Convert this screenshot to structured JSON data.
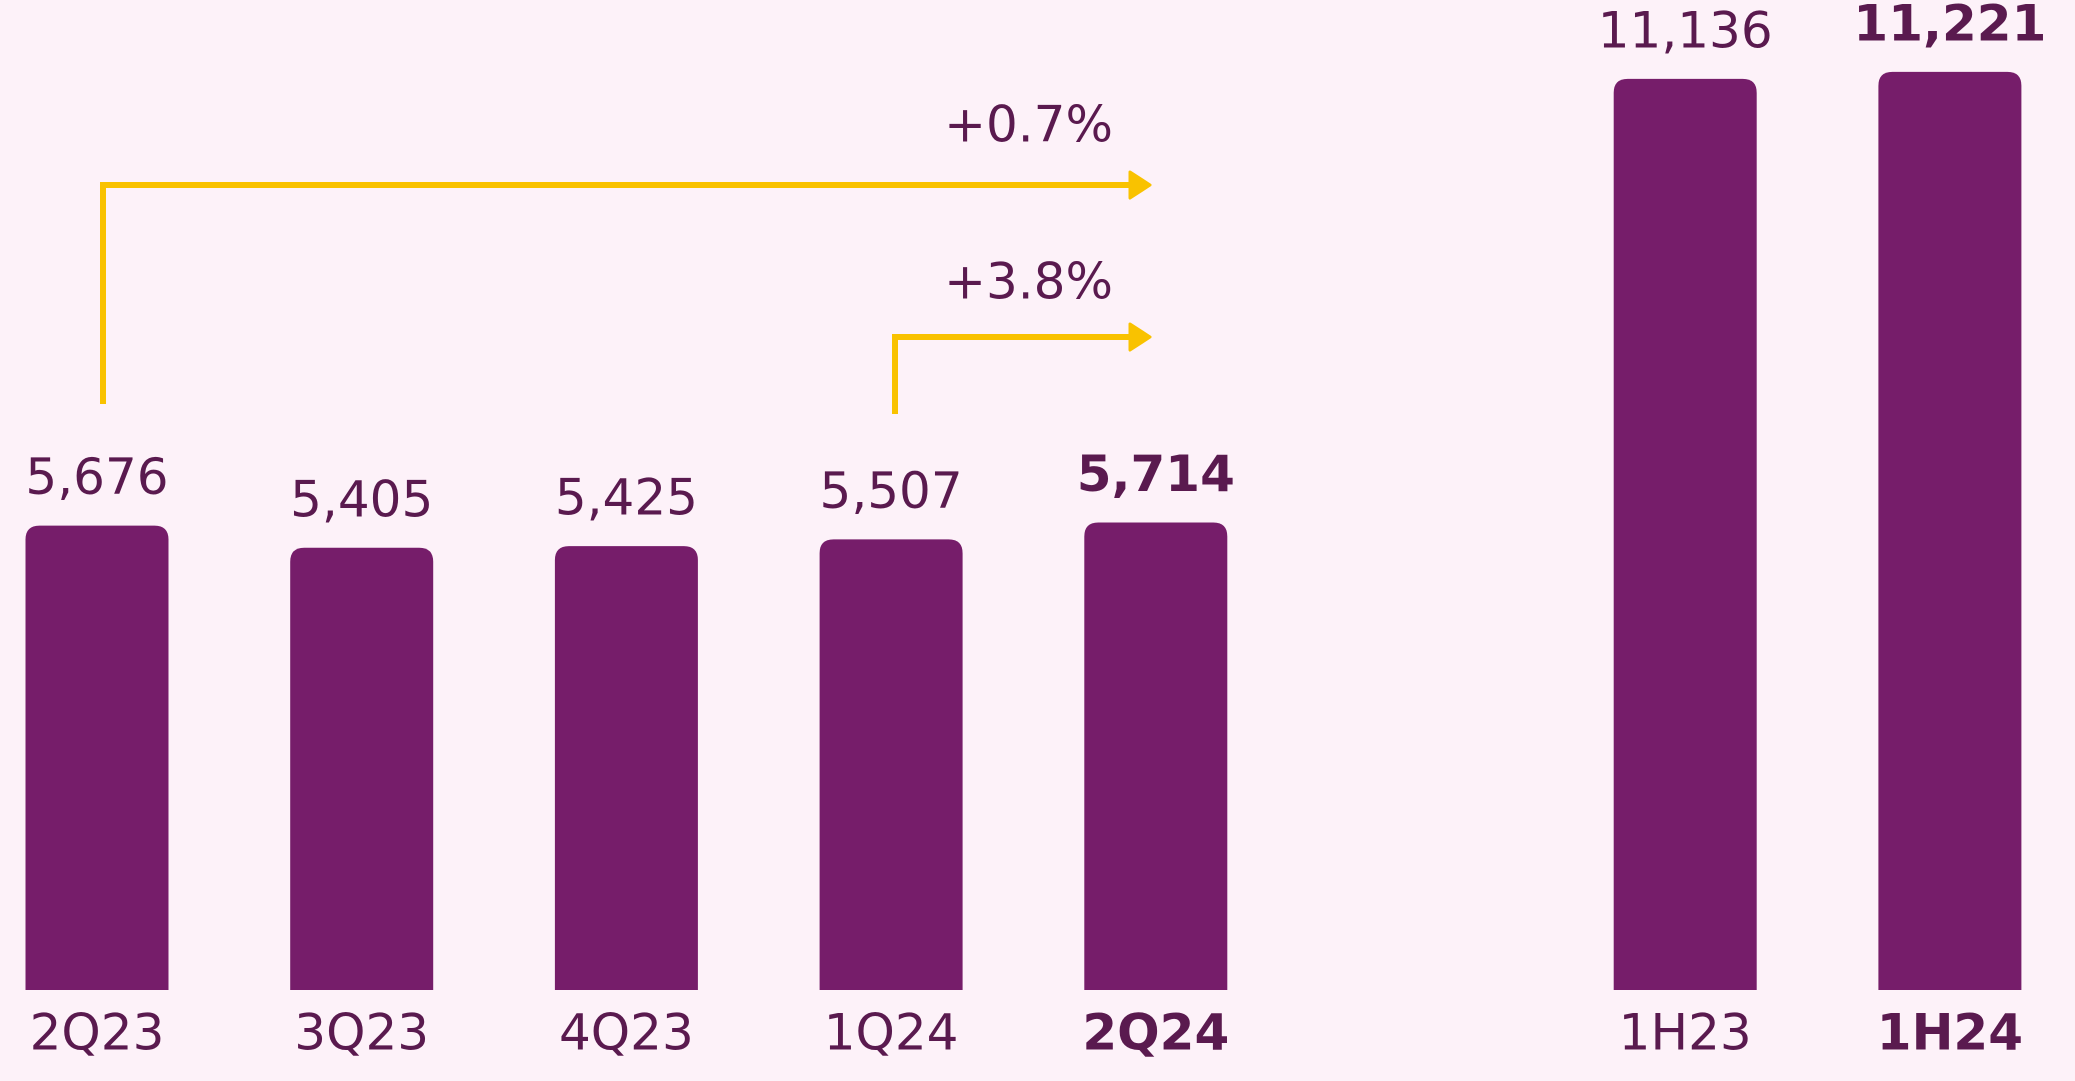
{
  "chart_data": {
    "type": "bar",
    "categories": [
      "2Q23",
      "3Q23",
      "4Q23",
      "1Q24",
      "2Q24",
      null,
      "1H23",
      "1H24"
    ],
    "values": [
      5676,
      5405,
      5425,
      5507,
      5714,
      null,
      11136,
      11221
    ],
    "value_labels": [
      "5,676",
      "5,405",
      "5,425",
      "5,507",
      "5,714",
      null,
      "11,136",
      "11,221"
    ],
    "bold": [
      false,
      false,
      false,
      false,
      true,
      false,
      false,
      true
    ],
    "color": "#761d6a",
    "ylim": [
      0,
      12100
    ],
    "annotations": [
      {
        "text": "+0.7%"
      },
      {
        "text": "+3.8%"
      }
    ]
  }
}
